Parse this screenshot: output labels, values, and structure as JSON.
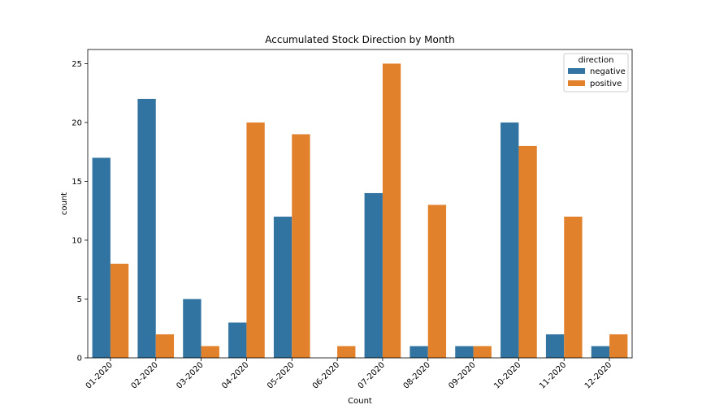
{
  "chart_data": {
    "type": "bar",
    "title": "Accumulated Stock Direction by Month",
    "xlabel": "Count",
    "ylabel": "count",
    "categories": [
      "01-2020",
      "02-2020",
      "03-2020",
      "04-2020",
      "05-2020",
      "06-2020",
      "07-2020",
      "08-2020",
      "09-2020",
      "10-2020",
      "11-2020",
      "12-2020"
    ],
    "series": [
      {
        "name": "negative",
        "color": "#3274a1",
        "values": [
          17,
          22,
          5,
          3,
          12,
          0,
          14,
          1,
          1,
          20,
          2,
          1
        ]
      },
      {
        "name": "positive",
        "color": "#e1812c",
        "values": [
          8,
          2,
          1,
          20,
          19,
          1,
          25,
          13,
          1,
          18,
          12,
          2
        ]
      }
    ],
    "ylim": [
      0,
      26.2
    ],
    "yticks": [
      0,
      5,
      10,
      15,
      20,
      25
    ],
    "legend_title": "direction",
    "legend_position": "top-right",
    "grid": false
  }
}
